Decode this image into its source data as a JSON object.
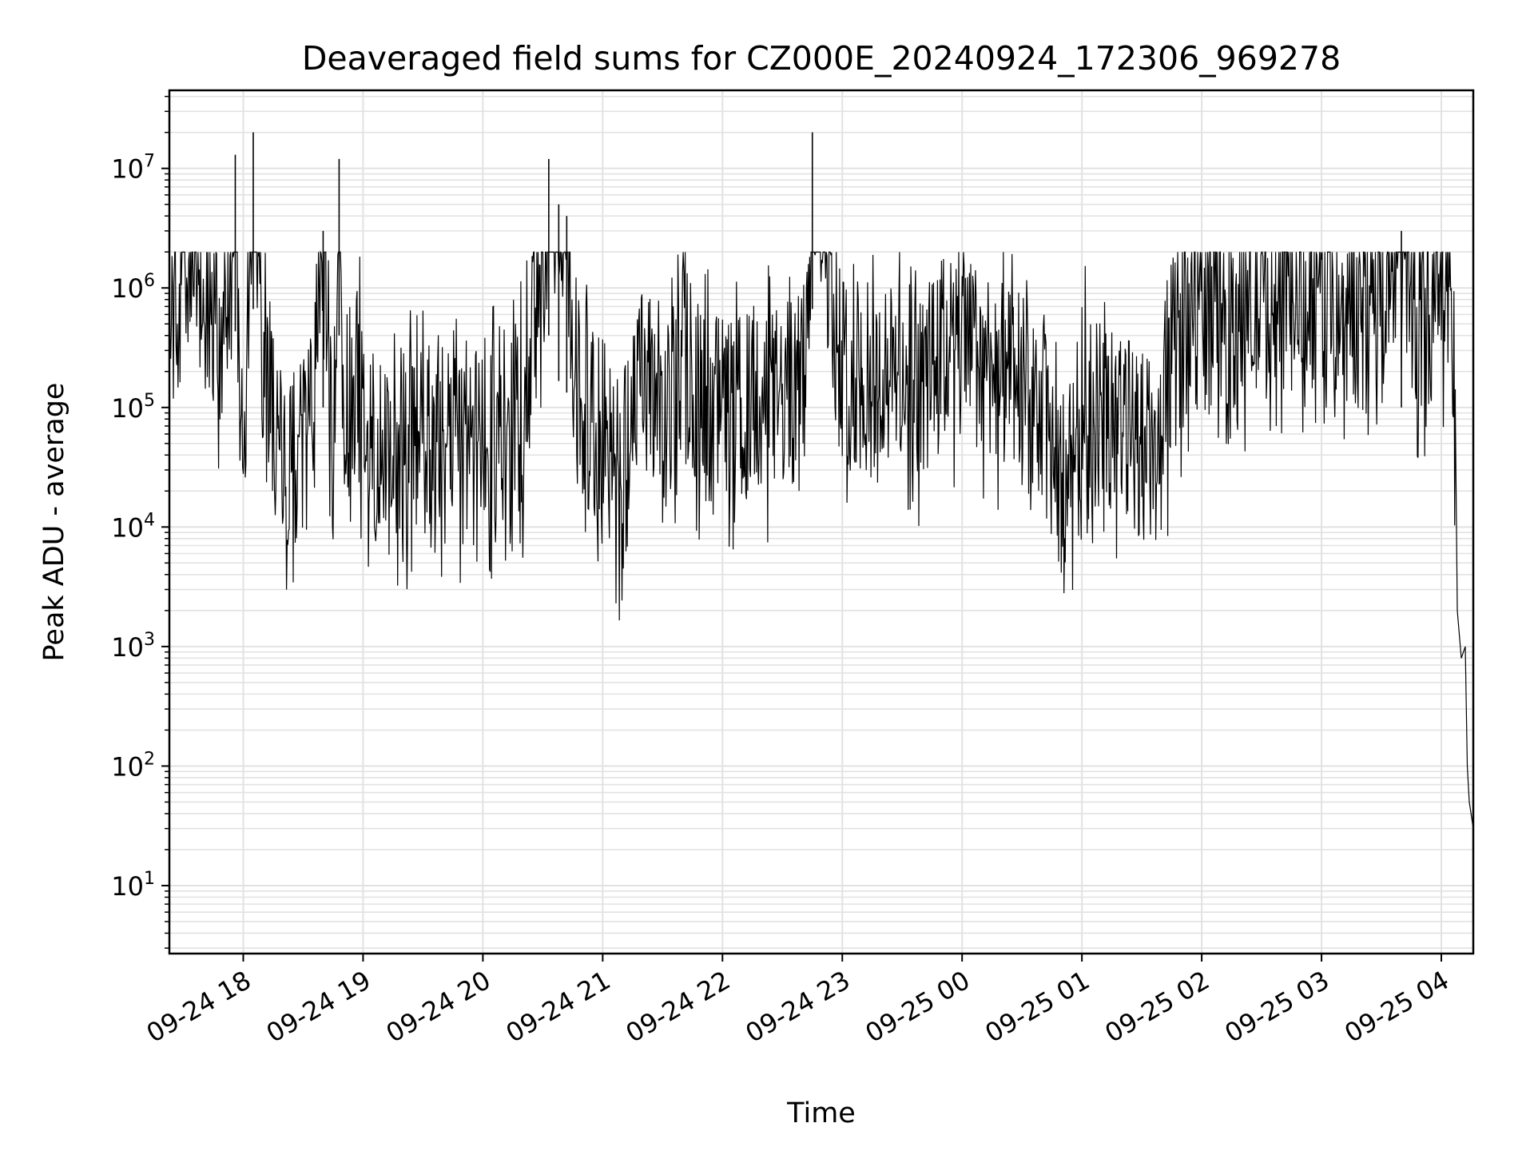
{
  "chart_data": {
    "type": "line",
    "title": "Deaveraged field sums for CZ000E_20240924_172306_969278",
    "xlabel": "Time",
    "ylabel": "Peak ADU - average",
    "yscale": "log",
    "ylim": [
      2.7,
      45000000
    ],
    "xlim": [
      "09-24 17:23",
      "09-25 04:16"
    ],
    "grid": "on (major and minor)",
    "line_color": "#000000",
    "xticks": [
      "09-24 18",
      "09-24 19",
      "09-24 20",
      "09-24 21",
      "09-24 22",
      "09-24 23",
      "09-25 00",
      "09-25 01",
      "09-25 02",
      "09-25 03",
      "09-25 04"
    ],
    "yticks": [
      {
        "base": "10",
        "exp": "1",
        "value": 10
      },
      {
        "base": "10",
        "exp": "2",
        "value": 100
      },
      {
        "base": "10",
        "exp": "3",
        "value": 1000
      },
      {
        "base": "10",
        "exp": "4",
        "value": 10000
      },
      {
        "base": "10",
        "exp": "5",
        "value": 100000
      },
      {
        "base": "10",
        "exp": "6",
        "value": 1000000
      },
      {
        "base": "10",
        "exp": "7",
        "value": 10000000
      }
    ],
    "series": [
      {
        "x": [
          "09-24 17:23",
          "09-24 17:30",
          "09-24 17:36",
          "09-24 17:42",
          "09-24 17:47",
          "09-24 17:52",
          "09-24 17:56",
          "09-24 17:58",
          "09-24 18:00",
          "09-24 18:05",
          "09-24 18:10",
          "09-24 18:15",
          "09-24 18:20",
          "09-24 18:25",
          "09-24 18:30",
          "09-24 18:35",
          "09-24 18:40",
          "09-24 18:45",
          "09-24 18:48",
          "09-24 18:50",
          "09-24 18:55",
          "09-24 19:00",
          "09-24 19:10",
          "09-24 19:20",
          "09-24 19:30",
          "09-24 19:40",
          "09-24 19:50",
          "09-24 20:00",
          "09-24 20:10",
          "09-24 20:20",
          "09-24 20:30",
          "09-24 20:33",
          "09-24 20:38",
          "09-24 20:42",
          "09-24 20:45",
          "09-24 20:50",
          "09-24 20:55",
          "09-24 21:00",
          "09-24 21:10",
          "09-24 21:20",
          "09-24 21:30",
          "09-24 21:40",
          "09-24 21:50",
          "09-24 22:00",
          "09-24 22:15",
          "09-24 22:30",
          "09-24 22:41",
          "09-24 22:45",
          "09-24 23:00",
          "09-24 23:15",
          "09-24 23:30",
          "09-24 23:40",
          "09-24 23:50",
          "09-25 00:00",
          "09-25 00:15",
          "09-25 00:30",
          "09-25 00:45",
          "09-25 00:50",
          "09-25 01:00",
          "09-25 01:15",
          "09-25 01:30",
          "09-25 01:40",
          "09-25 01:45",
          "09-25 02:00",
          "09-25 02:15",
          "09-25 02:30",
          "09-25 02:45",
          "09-25 03:00",
          "09-25 03:15",
          "09-25 03:30",
          "09-25 03:40",
          "09-25 03:45",
          "09-25 03:50",
          "09-25 04:00",
          "09-25 04:03",
          "09-25 04:05",
          "09-25 04:07",
          "09-25 04:08",
          "09-25 04:10",
          "09-25 04:12",
          "09-25 04:13",
          "09-25 04:14",
          "09-25 04:16"
        ],
        "y": [
          600000,
          700000,
          2000000,
          600000,
          300000,
          1000000,
          13000000,
          80000,
          60000,
          20000000,
          200000,
          80000,
          30000,
          30000,
          40000,
          80000,
          3000000,
          25000,
          12000000,
          40000,
          200000,
          100000,
          30000,
          40000,
          50000,
          60000,
          40000,
          40000,
          50000,
          80000,
          1500000,
          12000000,
          5000000,
          4000000,
          300000,
          100000,
          60000,
          50000,
          20000,
          200000,
          50000,
          300000,
          100000,
          100000,
          100000,
          120000,
          150000,
          20000000,
          200000,
          150000,
          200000,
          150000,
          300000,
          300000,
          250000,
          100000,
          50000,
          20000,
          100000,
          80000,
          50000,
          30000,
          300000,
          800000,
          600000,
          700000,
          800000,
          900000,
          600000,
          800000,
          3000000,
          700000,
          500000,
          1000000,
          1100000,
          600000,
          100000,
          2000,
          800,
          1000,
          100,
          50,
          30
        ]
      }
    ]
  }
}
